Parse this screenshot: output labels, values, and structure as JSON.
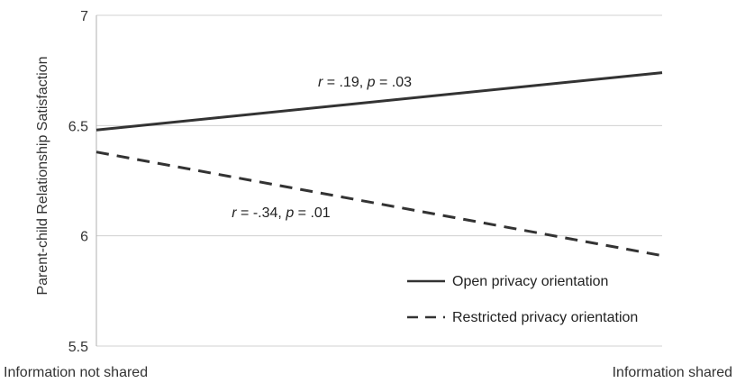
{
  "chart_data": {
    "type": "line",
    "title": "",
    "xlabel": "",
    "ylabel": "Parent-child Relationship Satisfaction",
    "categories": [
      "Information not shared",
      "Information shared"
    ],
    "ylim": [
      5.5,
      7
    ],
    "yticks": [
      "5.5",
      "6",
      "6.5",
      "7"
    ],
    "grid": true,
    "legend_position": "bottom-right",
    "series": [
      {
        "name": "Open privacy orientation",
        "values": [
          6.48,
          6.74
        ],
        "style": "solid",
        "annotation": {
          "r_label": "r",
          "r_text": " = .19, ",
          "p_label": "p",
          "p_text": " = .03"
        }
      },
      {
        "name": "Restricted privacy orientation",
        "values": [
          6.38,
          5.91
        ],
        "style": "dashed",
        "annotation": {
          "r_label": "r",
          "r_text": " = -.34, ",
          "p_label": "p",
          "p_text": " = .01"
        }
      }
    ],
    "colors": {
      "line": "#333333",
      "grid": "#d0d0d0",
      "axis": "#b0b0b0"
    }
  }
}
